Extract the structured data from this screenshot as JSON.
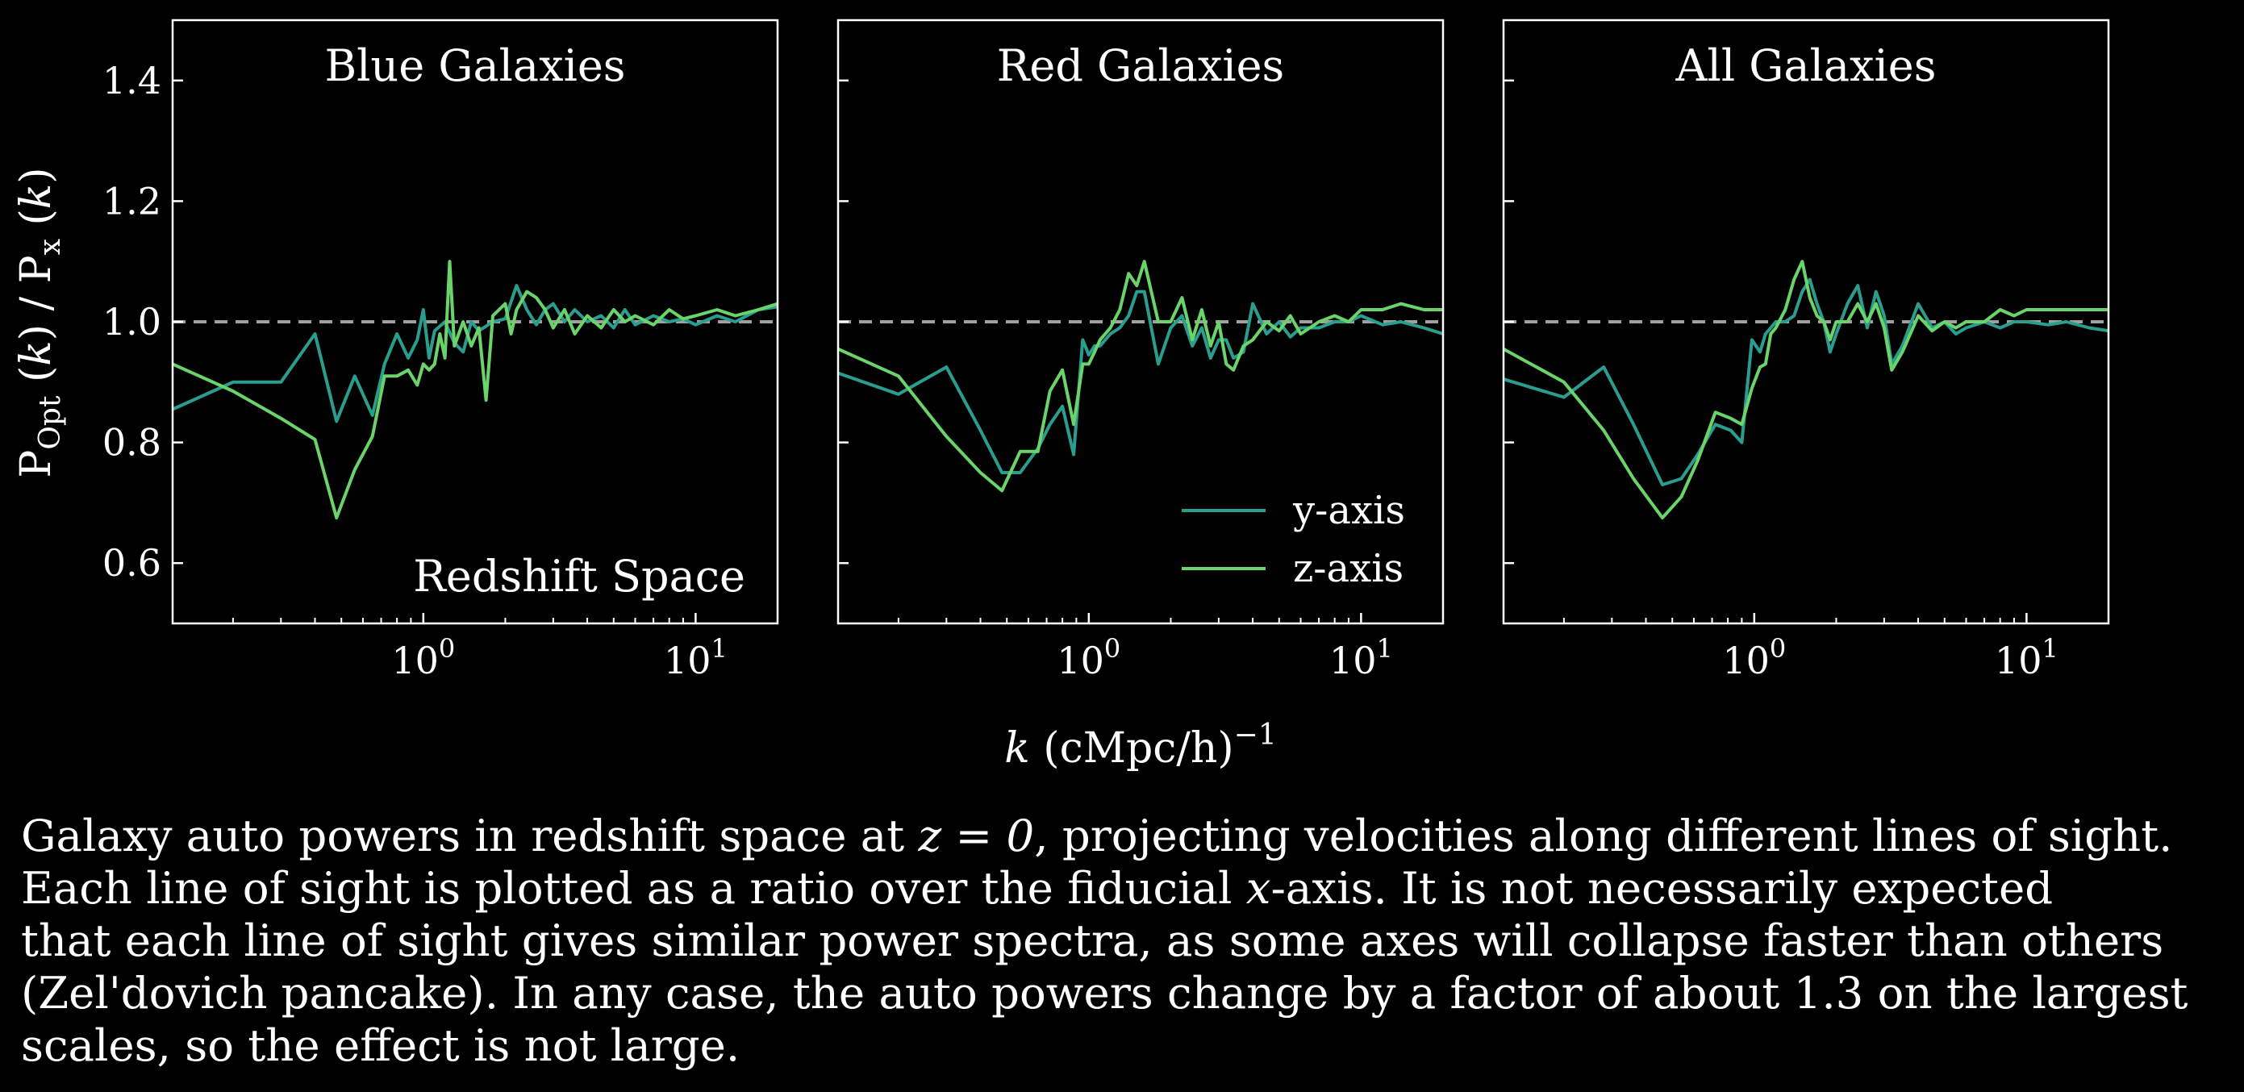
{
  "chart_data": {
    "type": "line",
    "shared": {
      "ylabel": "P_Opt (k) / P_x (k)",
      "xlabel": "k (cMpc/h)^-1",
      "xscale": "log",
      "xlim": [
        0.12,
        20
      ],
      "ylim": [
        0.5,
        1.5
      ],
      "yticks": [
        0.6,
        0.8,
        1.0,
        1.2,
        1.4
      ],
      "ytick_labels": [
        "0.6",
        "0.8",
        "1.0",
        "1.2",
        "1.4"
      ],
      "xticks": [
        1,
        10
      ],
      "xtick_labels": [
        "10^0",
        "10^1"
      ],
      "reference_line": {
        "y": 1.0,
        "style": "dashed",
        "color": "#a0a0a0"
      },
      "legend": {
        "placement": "lower-right",
        "panel": 2
      }
    },
    "colors": {
      "y-axis": "#2a9d8f",
      "z-axis": "#6ad46a"
    },
    "legend_entries": [
      "y-axis",
      "z-axis"
    ],
    "panels": [
      {
        "title": "Blue Galaxies",
        "annotation": "Redshift Space",
        "series": [
          {
            "name": "y-axis",
            "x": [
              0.12,
              0.2,
              0.3,
              0.4,
              0.48,
              0.56,
              0.65,
              0.72,
              0.8,
              0.88,
              0.95,
              1.0,
              1.05,
              1.1,
              1.2,
              1.3,
              1.4,
              1.5,
              1.6,
              1.8,
              2.0,
              2.2,
              2.4,
              2.6,
              2.8,
              3.0,
              3.3,
              3.6,
              4,
              4.5,
              5,
              5.5,
              6,
              7,
              8,
              9,
              10,
              12,
              14,
              17,
              20
            ],
            "y": [
              0.855,
              0.9,
              0.9,
              0.98,
              0.835,
              0.91,
              0.845,
              0.93,
              0.98,
              0.94,
              0.97,
              1.02,
              0.94,
              0.985,
              1.0,
              0.965,
              0.95,
              1.0,
              0.985,
              1.0,
              1.005,
              1.06,
              1.02,
              0.995,
              1.02,
              1.03,
              1.0,
              1.02,
              1.0,
              1.01,
              0.99,
              1.02,
              0.995,
              1.01,
              1.0,
              1.005,
              0.995,
              1.01,
              1.0,
              1.02,
              1.025
            ]
          },
          {
            "name": "z-axis",
            "x": [
              0.12,
              0.2,
              0.3,
              0.4,
              0.48,
              0.56,
              0.65,
              0.72,
              0.8,
              0.88,
              0.95,
              1.0,
              1.05,
              1.1,
              1.15,
              1.2,
              1.25,
              1.3,
              1.4,
              1.5,
              1.6,
              1.7,
              1.8,
              2.0,
              2.1,
              2.2,
              2.4,
              2.6,
              2.8,
              3.0,
              3.3,
              3.6,
              4,
              4.5,
              5,
              5.5,
              6,
              7,
              8,
              9,
              10,
              12,
              14,
              17,
              20
            ],
            "y": [
              0.93,
              0.885,
              0.84,
              0.805,
              0.675,
              0.755,
              0.81,
              0.91,
              0.91,
              0.92,
              0.895,
              0.93,
              0.92,
              0.93,
              0.98,
              0.94,
              1.1,
              0.96,
              1.0,
              0.96,
              0.99,
              0.87,
              1.01,
              1.03,
              0.98,
              1.02,
              1.05,
              1.04,
              1.02,
              0.99,
              1.02,
              0.98,
              1.01,
              0.99,
              1.02,
              1.0,
              1.01,
              0.995,
              1.02,
              1.005,
              1.01,
              1.02,
              1.01,
              1.02,
              1.03
            ]
          }
        ]
      },
      {
        "title": "Red Galaxies",
        "annotation": "",
        "series": [
          {
            "name": "y-axis",
            "x": [
              0.12,
              0.2,
              0.3,
              0.4,
              0.48,
              0.56,
              0.65,
              0.72,
              0.8,
              0.88,
              0.95,
              1.0,
              1.05,
              1.1,
              1.2,
              1.3,
              1.4,
              1.5,
              1.6,
              1.8,
              2.0,
              2.2,
              2.4,
              2.6,
              2.8,
              3.0,
              3.2,
              3.4,
              3.7,
              4,
              4.5,
              5,
              5.5,
              6,
              7,
              8,
              9,
              10,
              12,
              14,
              17,
              20
            ],
            "y": [
              0.915,
              0.88,
              0.925,
              0.82,
              0.75,
              0.75,
              0.79,
              0.83,
              0.86,
              0.78,
              0.97,
              0.945,
              0.96,
              0.96,
              0.98,
              0.99,
              1.01,
              1.05,
              1.05,
              0.93,
              0.99,
              1.01,
              0.96,
              0.99,
              0.94,
              0.97,
              0.97,
              0.94,
              0.95,
              1.03,
              0.98,
              1.0,
              0.975,
              0.99,
              0.99,
              1.0,
              1.0,
              1.01,
              0.995,
              1.0,
              0.99,
              0.98
            ]
          },
          {
            "name": "z-axis",
            "x": [
              0.12,
              0.2,
              0.3,
              0.4,
              0.48,
              0.56,
              0.65,
              0.72,
              0.8,
              0.88,
              0.95,
              1.0,
              1.05,
              1.1,
              1.2,
              1.3,
              1.4,
              1.5,
              1.6,
              1.8,
              2.0,
              2.2,
              2.4,
              2.6,
              2.8,
              3.0,
              3.2,
              3.4,
              3.7,
              4,
              4.5,
              5,
              5.5,
              6,
              7,
              8,
              9,
              10,
              12,
              14,
              17,
              20
            ],
            "y": [
              0.955,
              0.91,
              0.81,
              0.75,
              0.72,
              0.785,
              0.785,
              0.885,
              0.92,
              0.83,
              0.93,
              0.93,
              0.95,
              0.97,
              0.99,
              1.02,
              1.08,
              1.06,
              1.1,
              1.0,
              1.0,
              1.04,
              0.97,
              1.02,
              0.96,
              1.0,
              0.93,
              0.92,
              0.96,
              0.97,
              1.0,
              0.985,
              1.01,
              0.98,
              1.0,
              1.01,
              1.0,
              1.02,
              1.02,
              1.03,
              1.02,
              1.02
            ]
          }
        ]
      },
      {
        "title": "All Galaxies",
        "annotation": "",
        "series": [
          {
            "name": "y-axis",
            "x": [
              0.12,
              0.2,
              0.28,
              0.36,
              0.46,
              0.54,
              0.62,
              0.72,
              0.82,
              0.9,
              0.98,
              1.05,
              1.1,
              1.15,
              1.2,
              1.3,
              1.4,
              1.5,
              1.6,
              1.7,
              1.8,
              1.9,
              2.0,
              2.2,
              2.4,
              2.6,
              2.8,
              3.0,
              3.2,
              3.5,
              4,
              4.5,
              5,
              5.5,
              6,
              7,
              8,
              9,
              10,
              12,
              14,
              17,
              20
            ],
            "y": [
              0.905,
              0.875,
              0.925,
              0.83,
              0.73,
              0.74,
              0.78,
              0.83,
              0.82,
              0.8,
              0.97,
              0.95,
              0.98,
              0.99,
              1.0,
              1.0,
              1.01,
              1.05,
              1.07,
              1.03,
              1.0,
              0.95,
              0.98,
              1.03,
              1.06,
              0.99,
              1.05,
              1.01,
              0.93,
              0.96,
              1.03,
              0.99,
              1.0,
              0.98,
              0.99,
              1.0,
              0.99,
              1.0,
              1.0,
              0.995,
              1.0,
              0.99,
              0.985
            ]
          },
          {
            "name": "z-axis",
            "x": [
              0.12,
              0.2,
              0.28,
              0.36,
              0.46,
              0.54,
              0.62,
              0.72,
              0.82,
              0.9,
              0.98,
              1.05,
              1.1,
              1.15,
              1.2,
              1.3,
              1.4,
              1.5,
              1.6,
              1.7,
              1.8,
              1.9,
              2.0,
              2.2,
              2.4,
              2.6,
              2.8,
              3.0,
              3.2,
              3.5,
              4,
              4.5,
              5,
              5.5,
              6,
              7,
              8,
              9,
              10,
              12,
              14,
              17,
              20
            ],
            "y": [
              0.955,
              0.9,
              0.82,
              0.74,
              0.675,
              0.71,
              0.77,
              0.85,
              0.84,
              0.83,
              0.89,
              0.925,
              0.93,
              0.98,
              0.99,
              1.02,
              1.07,
              1.1,
              1.04,
              1.01,
              1.0,
              0.97,
              1.0,
              1.0,
              1.03,
              1.0,
              1.03,
              0.99,
              0.92,
              0.95,
              1.01,
              0.985,
              1.0,
              0.99,
              1.0,
              1.0,
              1.02,
              1.01,
              1.02,
              1.02,
              1.02,
              1.02,
              1.02
            ]
          }
        ]
      }
    ]
  },
  "caption": {
    "line1_a": "Galaxy auto powers in redshift space at ",
    "line1_math": "z = 0",
    "line1_b": ", projecting velocities along different lines of sight.",
    "line2_a": "Each line of sight is plotted as a ratio over the fiducial ",
    "line2_math": "x",
    "line2_b": "-axis. It is not necessarily expected",
    "line3": "that each line of sight gives similar power spectra, as some axes will collapse faster than others",
    "line4": "(Zel'dovich pancake). In any case, the auto powers change by a factor of about 1.3 on the largest",
    "line5": "scales, so the effect is not large."
  }
}
